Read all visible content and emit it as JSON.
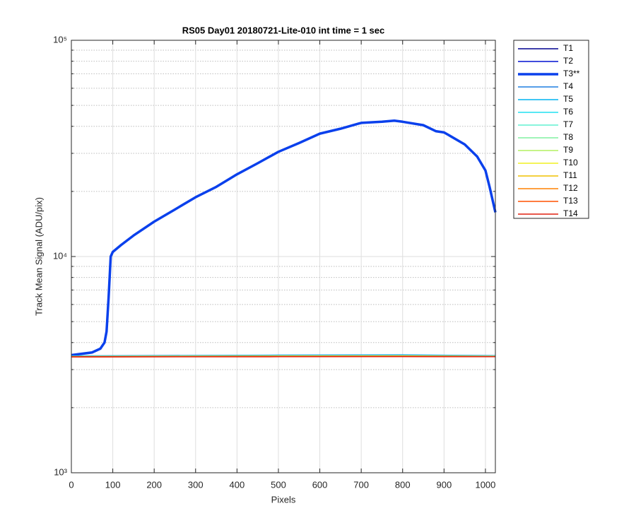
{
  "chart_data": {
    "type": "line",
    "title": "RS05 Day01 20180721-Lite-010 int time = 1 sec",
    "x_label": "Pixels",
    "y_label": "Track Mean Signal (ADU/pix)",
    "xlim": [
      0,
      1024
    ],
    "xticks": [
      0,
      100,
      200,
      300,
      400,
      500,
      600,
      700,
      800,
      900,
      1000
    ],
    "ylim": [
      1000,
      100000
    ],
    "y_scale": "log",
    "yticks": [
      {
        "value": 1000,
        "label": "10³"
      },
      {
        "value": 10000,
        "label": "10⁴"
      },
      {
        "value": 100000,
        "label": "10⁵"
      }
    ],
    "yminorticks": [
      2000,
      3000,
      4000,
      5000,
      6000,
      7000,
      8000,
      9000,
      20000,
      30000,
      40000,
      50000,
      60000,
      70000,
      80000,
      90000
    ],
    "grid": true,
    "minor_grid": true,
    "legend": "outside-right",
    "series": [
      {
        "name": "T1",
        "color": "#00008f",
        "width": 1.5,
        "x": [
          0,
          500,
          800,
          1024
        ],
        "values": [
          3440,
          3450,
          3455,
          3445
        ]
      },
      {
        "name": "T2",
        "color": "#0010d0",
        "width": 1.5,
        "x": [
          0,
          500,
          800,
          1024
        ],
        "values": [
          3450,
          3465,
          3470,
          3455
        ]
      },
      {
        "name": "T3**",
        "color": "#0a40ec",
        "width": 3.5,
        "x": [
          0,
          50,
          70,
          80,
          85,
          90,
          95,
          100,
          120,
          150,
          200,
          250,
          300,
          350,
          400,
          450,
          500,
          550,
          600,
          650,
          700,
          750,
          780,
          800,
          850,
          880,
          900,
          950,
          980,
          1000,
          1010,
          1024
        ],
        "values": [
          3500,
          3600,
          3750,
          4000,
          4500,
          6500,
          10000,
          10500,
          11300,
          12500,
          14500,
          16500,
          18800,
          21000,
          24000,
          27000,
          30500,
          33500,
          37000,
          39000,
          41500,
          42000,
          42500,
          42000,
          40500,
          38000,
          37500,
          33000,
          29000,
          25000,
          21000,
          16000
        ]
      },
      {
        "name": "T4",
        "color": "#1e7fe0",
        "width": 1.5,
        "x": [
          0,
          500,
          800,
          1024
        ],
        "values": [
          3470,
          3500,
          3510,
          3480
        ]
      },
      {
        "name": "T5",
        "color": "#00b4f0",
        "width": 1.5,
        "x": [
          0,
          500,
          800,
          1024
        ],
        "values": [
          3460,
          3490,
          3500,
          3470
        ]
      },
      {
        "name": "T6",
        "color": "#20e0f0",
        "width": 1.5,
        "x": [
          0,
          500,
          800,
          1024
        ],
        "values": [
          3455,
          3480,
          3490,
          3465
        ]
      },
      {
        "name": "T7",
        "color": "#60f0d0",
        "width": 1.5,
        "x": [
          0,
          500,
          800,
          1024
        ],
        "values": [
          3450,
          3475,
          3480,
          3460
        ]
      },
      {
        "name": "T8",
        "color": "#80f0a0",
        "width": 1.5,
        "x": [
          0,
          500,
          800,
          1024
        ],
        "values": [
          3448,
          3470,
          3475,
          3455
        ]
      },
      {
        "name": "T9",
        "color": "#b4f060",
        "width": 1.5,
        "x": [
          0,
          500,
          800,
          1024
        ],
        "values": [
          3445,
          3465,
          3470,
          3452
        ]
      },
      {
        "name": "T10",
        "color": "#f0f020",
        "width": 1.5,
        "x": [
          0,
          500,
          800,
          1024
        ],
        "values": [
          3442,
          3460,
          3465,
          3450
        ]
      },
      {
        "name": "T11",
        "color": "#f0c000",
        "width": 1.5,
        "x": [
          0,
          500,
          800,
          1024
        ],
        "values": [
          3440,
          3455,
          3460,
          3448
        ]
      },
      {
        "name": "T12",
        "color": "#ff8000",
        "width": 1.5,
        "x": [
          0,
          500,
          800,
          1024
        ],
        "values": [
          3438,
          3450,
          3455,
          3445
        ]
      },
      {
        "name": "T13",
        "color": "#ff5000",
        "width": 1.5,
        "x": [
          0,
          500,
          800,
          1024
        ],
        "values": [
          3436,
          3445,
          3450,
          3442
        ]
      },
      {
        "name": "T14",
        "color": "#e02010",
        "width": 1.5,
        "x": [
          0,
          500,
          800,
          1024
        ],
        "values": [
          3435,
          3440,
          3445,
          3440
        ]
      }
    ]
  }
}
